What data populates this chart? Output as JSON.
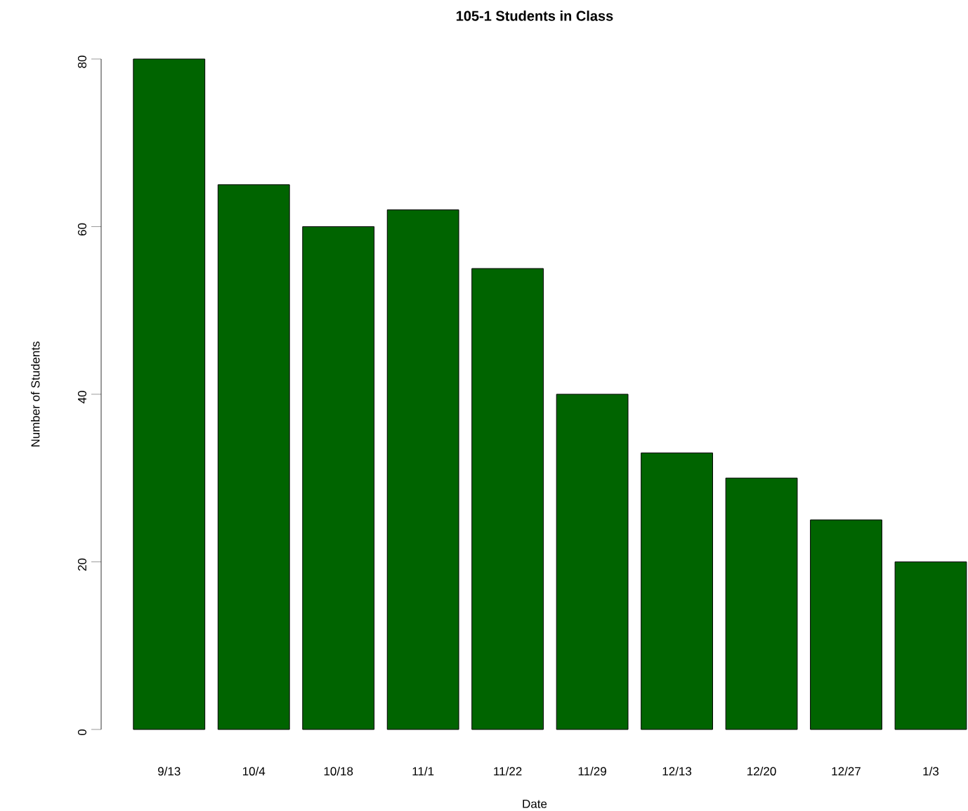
{
  "chart_data": {
    "type": "bar",
    "title": "105-1 Students in Class",
    "xlabel": "Date",
    "ylabel": "Number of Students",
    "categories": [
      "9/13",
      "10/4",
      "10/18",
      "11/1",
      "11/22",
      "11/29",
      "12/13",
      "12/20",
      "12/27",
      "1/3"
    ],
    "values": [
      80,
      65,
      60,
      62,
      55,
      40,
      33,
      30,
      25,
      20
    ],
    "color": "#006400",
    "ylim": [
      0,
      80
    ],
    "yticks": [
      0,
      20,
      40,
      60,
      80
    ],
    "grid": false
  }
}
